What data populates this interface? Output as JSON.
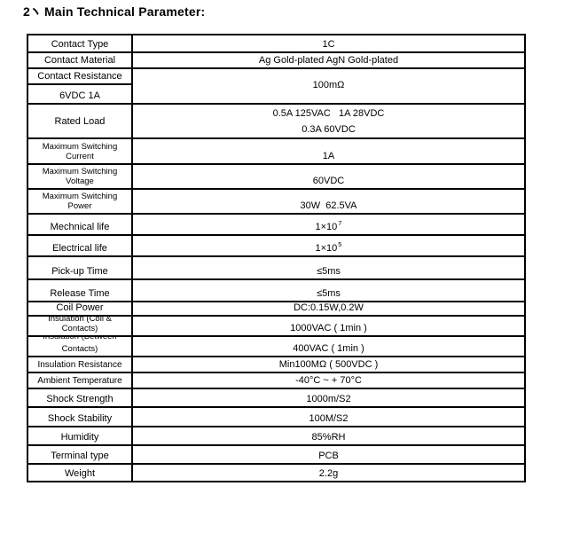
{
  "page": {
    "title": {
      "number": "2",
      "separator": "、",
      "text": "Main Technical Parameter:"
    }
  },
  "table": {
    "rows": [
      {
        "label": "Contact Type",
        "value": "1C"
      },
      {
        "label": "Contact Material",
        "value": "Ag Gold-plated AgN Gold-plated"
      },
      {
        "label_top": "Contact Resistance",
        "label_bottom": "6VDC 1A",
        "value": "100mΩ"
      },
      {
        "label": "Rated Load",
        "value_lines": [
          "0.5A 125VAC   1A 28VDC",
          "0.3A 60VDC"
        ]
      },
      {
        "label_lines": [
          "Maximum Switching",
          "Current"
        ],
        "value": "1A"
      },
      {
        "label_lines": [
          "Maximum Switching",
          "Voltage"
        ],
        "value": "60VDC"
      },
      {
        "label_lines": [
          "Maximum Switching",
          "Power"
        ],
        "value": "30W  62.5VA"
      },
      {
        "label": "Mechnical life",
        "value_base": "1×10",
        "value_sup": "7"
      },
      {
        "label": "Electrical life",
        "value_base": "1×10",
        "value_sup": "5"
      },
      {
        "label": "Pick-up Time",
        "value": "≤5ms"
      },
      {
        "label": "Release Time",
        "value": "≤5ms"
      },
      {
        "label": "Coil Power",
        "value": "DC:0.15W,0.2W"
      },
      {
        "label_lines": [
          "Insulation (Coil &",
          "Contacts)"
        ],
        "value": "1000VAC ( 1min )"
      },
      {
        "label_lines": [
          "Insulation (Between",
          "Contacts)"
        ],
        "value": "400VAC ( 1min )"
      },
      {
        "label": "Insulation Resistance",
        "value": "Min100MΩ ( 500VDC )"
      },
      {
        "label": "Ambient Temperature",
        "value": "-40°C ~ + 70°C"
      },
      {
        "label": "Shock Strength",
        "value": "1000m/S2"
      },
      {
        "label": "Shock Stability",
        "value": "100M/S2"
      },
      {
        "label": "Humidity",
        "value": "85%RH"
      },
      {
        "label": "Terminal type",
        "value": "PCB"
      },
      {
        "label": "Weight",
        "value": "2.2g"
      }
    ]
  }
}
